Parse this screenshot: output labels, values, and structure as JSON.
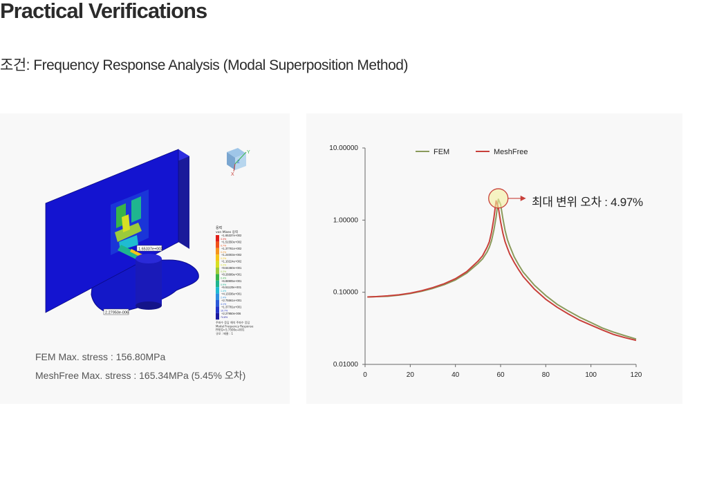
{
  "page": {
    "title": "Practical Verifications",
    "subtitle": "조건: Frequency Response Analysis (Modal Superposition Method)"
  },
  "fem_panel": {
    "fem_stress": "FEM Max. stress : 156.80MPa",
    "meshfree_stress": "MeshFree Max. stress : 165.34MPa (5.45% 오차)",
    "max_marker": "1.65337e+002",
    "min_marker": "2.27950e-006",
    "legend_header_1": "응력",
    "legend_header_2": "von Mises 응력",
    "legend_values": [
      "+1.65337e+002",
      "+1.51550e+002",
      "+1.37781e+002",
      "+1.24003e+002",
      "+1.10224e+002",
      "+9.64460e+001",
      "+8.26689e+001",
      "+6.88905e+001",
      "+5.51120e+001",
      "+4.13336e+001",
      "+2.75561e+001",
      "+1.37781e+001",
      "+2.27950e-006"
    ],
    "legend_percents": [
      "3.3%",
      "0.7%",
      "0.2%",
      "0.2%",
      "0.2%",
      "0.2%",
      "0.4%",
      "0.9%",
      "1.4%",
      "2.4%",
      "4.1%",
      "10.7%",
      "74.8%"
    ],
    "legend_colors": [
      "#e0201a",
      "#f0521a",
      "#f7941d",
      "#f5c518",
      "#d7df23",
      "#9ccb3b",
      "#38b449",
      "#1fb58f",
      "#1fbcd2",
      "#2f8fe0",
      "#2b5ad8",
      "#2233c8",
      "#1a1aa0"
    ],
    "legend_footer": [
      "주파수 응답 해석 주파수 응답",
      "Modal Frequency Response",
      "FREQ=5.7500e+001",
      "규모 : 배율 : 1"
    ],
    "axis_y_label": "Y",
    "axis_x_label": "X",
    "axis_z_label": "Z"
  },
  "chart_data": {
    "type": "line",
    "title": "",
    "xlabel": "",
    "ylabel": "",
    "xlim": [
      0,
      120
    ],
    "ylim": [
      0.01,
      10
    ],
    "yscale": "log",
    "x_ticks": [
      "0",
      "20",
      "40",
      "60",
      "80",
      "100",
      "120"
    ],
    "y_ticks": [
      "10.00000",
      "1.00000",
      "0.10000",
      "0.01000"
    ],
    "legend_position": "top",
    "annotation": "최대 변위 오차 : 4.97%",
    "peak_x": 59,
    "series": [
      {
        "name": "FEM",
        "color": "#8a9a5b",
        "x": [
          1,
          5,
          10,
          15,
          20,
          25,
          30,
          35,
          40,
          45,
          50,
          52,
          54,
          55,
          56,
          57,
          58,
          59,
          60,
          61,
          62,
          63,
          64,
          66,
          68,
          70,
          75,
          80,
          85,
          90,
          95,
          100,
          105,
          110,
          115,
          120
        ],
        "y": [
          0.086,
          0.087,
          0.088,
          0.091,
          0.096,
          0.103,
          0.113,
          0.127,
          0.148,
          0.184,
          0.25,
          0.29,
          0.36,
          0.42,
          0.52,
          0.72,
          1.1,
          1.95,
          1.65,
          1.05,
          0.72,
          0.54,
          0.44,
          0.31,
          0.24,
          0.19,
          0.125,
          0.09,
          0.068,
          0.055,
          0.045,
          0.038,
          0.032,
          0.028,
          0.025,
          0.0225
        ]
      },
      {
        "name": "MeshFree",
        "color": "#c8403a",
        "x": [
          1,
          5,
          10,
          15,
          20,
          25,
          30,
          35,
          40,
          45,
          50,
          52,
          54,
          55,
          56,
          57,
          58,
          59,
          60,
          61,
          62,
          63,
          64,
          66,
          68,
          70,
          75,
          80,
          85,
          90,
          95,
          100,
          105,
          110,
          115,
          120
        ],
        "y": [
          0.086,
          0.087,
          0.089,
          0.092,
          0.097,
          0.105,
          0.116,
          0.131,
          0.154,
          0.193,
          0.27,
          0.32,
          0.42,
          0.5,
          0.68,
          1.05,
          1.85,
          1.5,
          0.95,
          0.66,
          0.5,
          0.41,
          0.34,
          0.26,
          0.205,
          0.165,
          0.11,
          0.08,
          0.062,
          0.05,
          0.041,
          0.035,
          0.03,
          0.026,
          0.0235,
          0.0215
        ]
      }
    ]
  }
}
